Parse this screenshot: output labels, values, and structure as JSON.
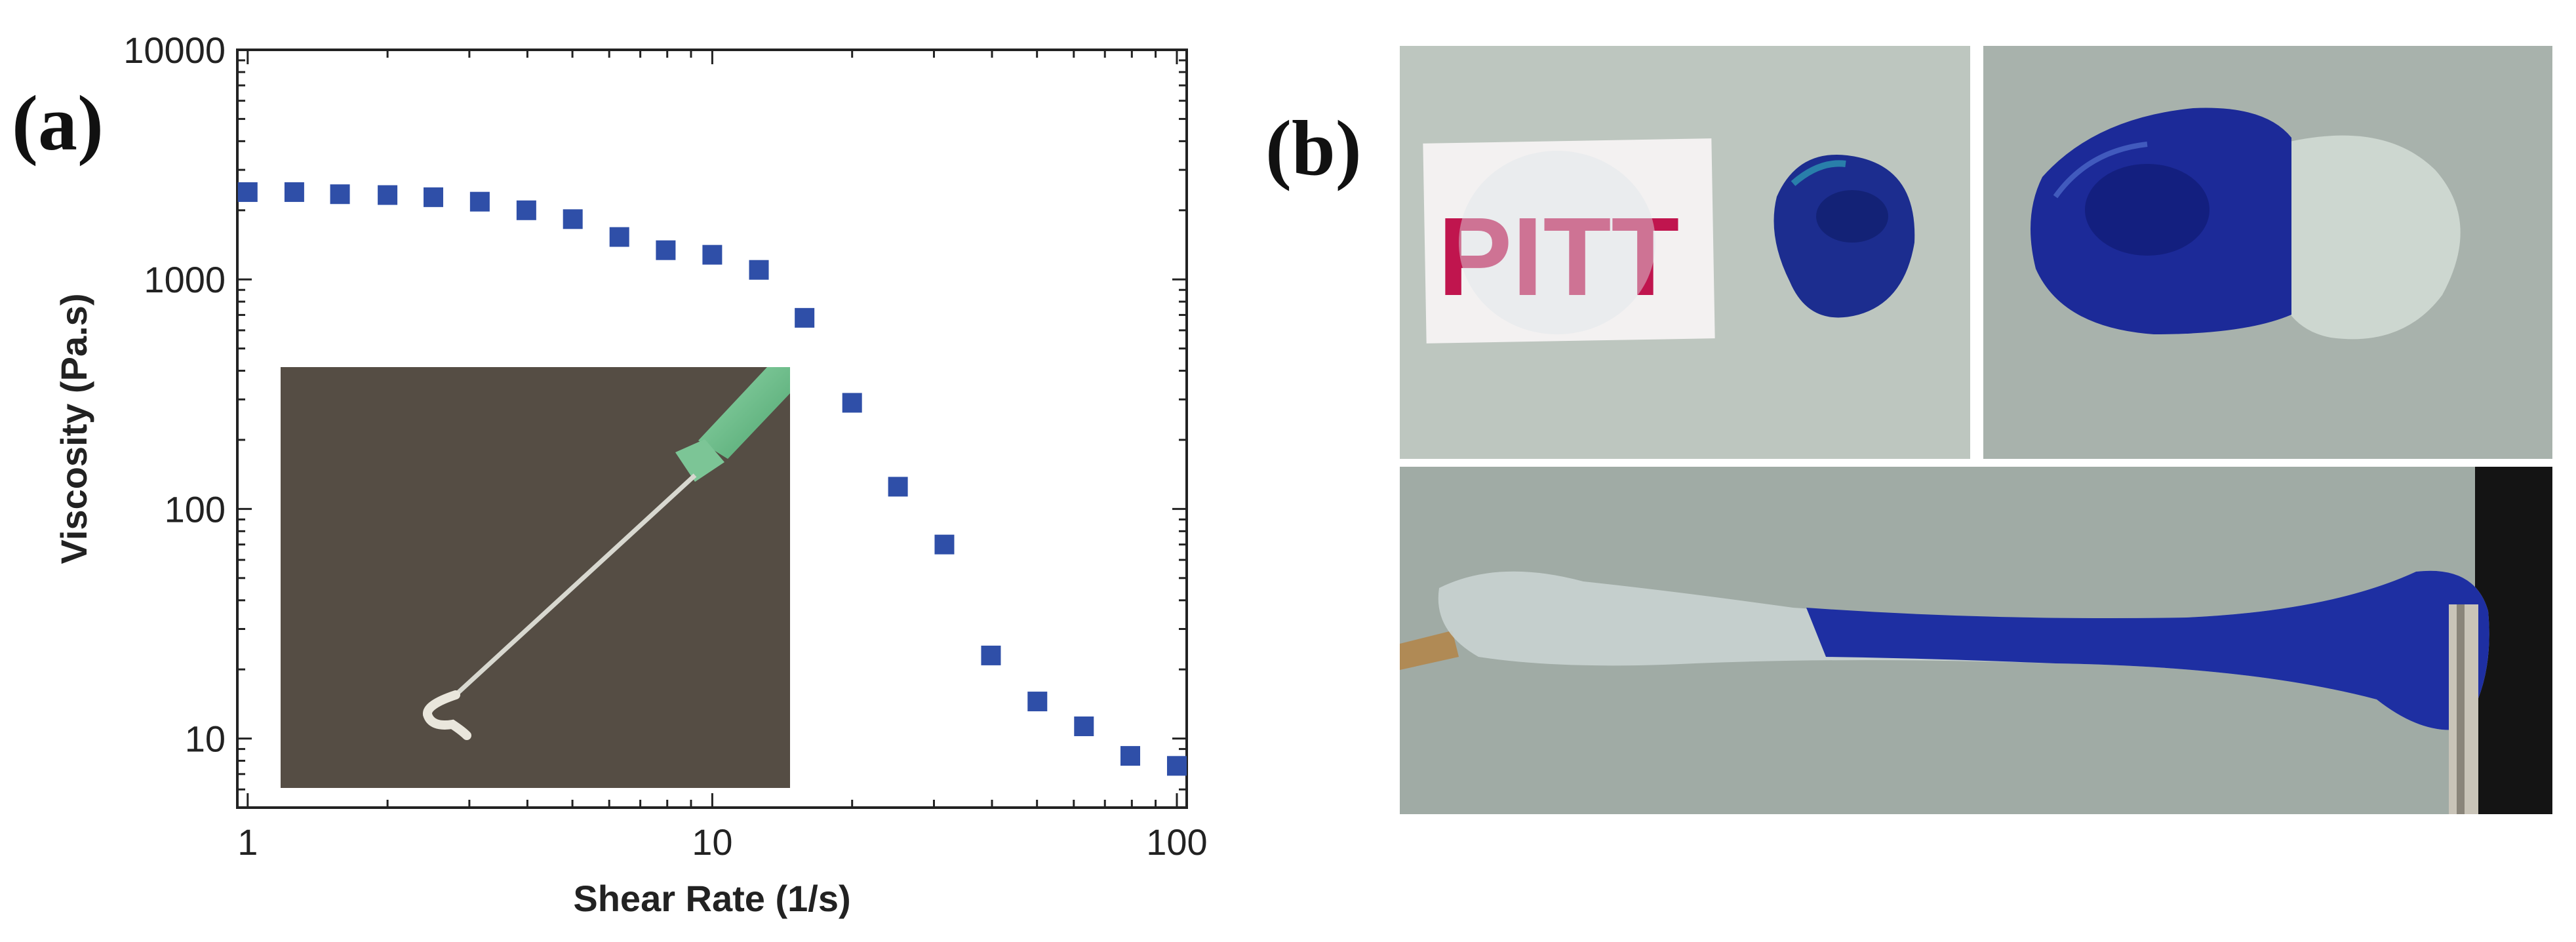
{
  "figure": {
    "panel_a_label": "(a)",
    "panel_b_label": "(b)"
  },
  "chart_data": {
    "type": "scatter",
    "xscale": "log",
    "yscale": "log",
    "xlim": [
      0.95,
      105
    ],
    "ylim": [
      5,
      10000
    ],
    "xlabel": "Shear Rate (1/s)",
    "ylabel": "Viscosity (Pa.s)",
    "x_ticks": [
      1,
      10,
      100
    ],
    "x_tick_labels": [
      "1",
      "10",
      "100"
    ],
    "y_ticks": [
      10,
      100,
      1000,
      10000
    ],
    "y_tick_labels": [
      "10",
      "100",
      "1000",
      "10000"
    ],
    "marker": "square",
    "color": "#2f4fa8",
    "series": [
      {
        "name": "viscosity",
        "x": [
          1.0,
          1.26,
          1.58,
          2.0,
          2.51,
          3.16,
          3.98,
          5.01,
          6.31,
          7.94,
          10.0,
          12.6,
          15.8,
          20.0,
          25.1,
          31.6,
          39.8,
          50.1,
          63.1,
          79.4,
          100
        ],
        "y": [
          2400,
          2400,
          2350,
          2330,
          2280,
          2180,
          2000,
          1830,
          1530,
          1340,
          1280,
          1100,
          680,
          290,
          125,
          70,
          23,
          14.5,
          11.3,
          8.4,
          7.6
        ]
      }
    ],
    "inset": "photo of needle extruding gel filament"
  },
  "photos": {
    "top_left_sign": "PITT",
    "top_left_desc": "clear gel on Pitt logo card and blue gel drop",
    "top_right_desc": "blue and clear gel drops merged",
    "bottom_desc": "gel stretched between two probes"
  },
  "colors": {
    "marker": "#2f4fa8",
    "gel_blue": "#1f2f9c",
    "pitt_red": "#c0154e"
  }
}
